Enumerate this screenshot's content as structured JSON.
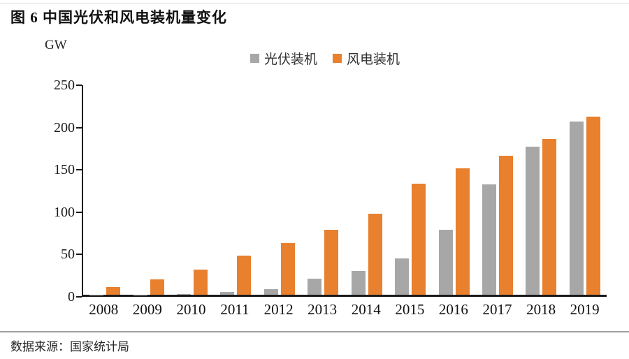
{
  "header": {
    "title": "图 6 中国光伏和风电装机量变化"
  },
  "chart_data": {
    "type": "bar",
    "title": "图 6 中国光伏和风电装机量变化",
    "unit_label": "GW",
    "categories": [
      "2008",
      "2009",
      "2010",
      "2011",
      "2012",
      "2013",
      "2014",
      "2015",
      "2016",
      "2017",
      "2018",
      "2019"
    ],
    "series": [
      {
        "name": "光伏装机",
        "color": "#A7A7A7",
        "values": [
          0.1,
          0.3,
          0.9,
          3,
          7,
          19,
          28,
          43,
          77,
          130,
          175,
          205
        ]
      },
      {
        "name": "风电装机",
        "color": "#E8802E",
        "values": [
          9,
          18,
          30,
          46,
          61,
          77,
          96,
          131,
          149,
          164,
          184,
          210
        ]
      }
    ],
    "ylabel": "GW",
    "xlabel": "",
    "ylim": [
      0,
      250
    ],
    "yticks": [
      0,
      50,
      100,
      150,
      200,
      250
    ],
    "grid": false,
    "legend_position": "top-center",
    "axis_color": "#1a1a1a"
  },
  "footer": {
    "source": "数据来源：国家统计局"
  }
}
